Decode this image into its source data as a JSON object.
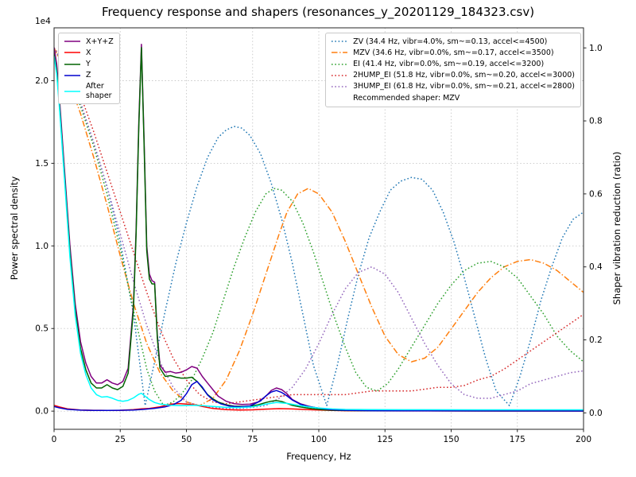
{
  "chart_data": {
    "type": "line",
    "title": "Frequency response and shapers (resonances_y_20201129_184323.csv)",
    "xlabel": "Frequency, Hz",
    "ylabel_left": "Power spectral density",
    "ylabel_right": "Shaper vibration reduction (ratio)",
    "xlim": [
      0,
      200
    ],
    "x_ticks": [
      0,
      25,
      50,
      75,
      100,
      125,
      150,
      175,
      200
    ],
    "left_axis": {
      "offset_text": "1e4",
      "ticks": [
        0,
        5000,
        10000,
        15000,
        20000
      ],
      "tick_labels": [
        "0.0",
        "0.5",
        "1.0",
        "1.5",
        "2.0"
      ],
      "lim": [
        -1100,
        23200
      ]
    },
    "right_axis": {
      "ticks": [
        0,
        0.2,
        0.4,
        0.6,
        0.8,
        1.0
      ],
      "tick_labels": [
        "0.0",
        "0.2",
        "0.4",
        "0.6",
        "0.8",
        "1.0"
      ],
      "lim": [
        -0.045,
        1.055
      ]
    },
    "grid": true,
    "legend_note": "Recommended shaper: MZV",
    "psd_series": [
      {
        "name": "X+Y+Z",
        "color": "#800080",
        "style": "solid",
        "x": [
          0,
          1,
          2,
          4,
          6,
          8,
          10,
          12,
          14,
          16,
          18,
          20,
          22,
          24,
          26,
          28,
          30,
          31,
          32,
          33,
          34,
          35,
          36,
          37,
          38,
          39,
          40,
          42,
          44,
          46,
          48,
          50,
          52,
          54,
          56,
          58,
          60,
          62,
          65,
          68,
          71,
          74,
          77,
          80,
          82,
          84,
          86,
          88,
          90,
          93,
          96,
          99,
          102,
          106,
          110,
          115,
          120,
          130,
          140,
          160,
          180,
          200
        ],
        "y": [
          22000,
          21000,
          19000,
          14500,
          10000,
          6500,
          4200,
          2900,
          2100,
          1700,
          1700,
          1900,
          1700,
          1600,
          1800,
          2600,
          6500,
          11000,
          17500,
          22200,
          16500,
          10000,
          8300,
          7900,
          7800,
          4600,
          2800,
          2350,
          2400,
          2300,
          2350,
          2500,
          2700,
          2600,
          2100,
          1700,
          1300,
          900,
          600,
          450,
          400,
          420,
          550,
          900,
          1250,
          1400,
          1300,
          1050,
          700,
          450,
          300,
          200,
          130,
          80,
          60,
          45,
          40,
          30,
          25,
          20,
          20,
          20
        ]
      },
      {
        "name": "X",
        "color": "#ff0000",
        "style": "solid",
        "x": [
          0,
          2,
          5,
          10,
          15,
          20,
          25,
          30,
          33,
          36,
          40,
          44,
          47,
          50,
          53,
          56,
          60,
          65,
          70,
          75,
          80,
          85,
          90,
          95,
          100,
          105,
          110,
          120,
          140,
          170,
          200
        ],
        "y": [
          350,
          250,
          140,
          70,
          50,
          45,
          50,
          90,
          140,
          160,
          260,
          420,
          460,
          430,
          380,
          280,
          160,
          90,
          70,
          80,
          120,
          150,
          130,
          100,
          70,
          40,
          25,
          15,
          10,
          8,
          8
        ]
      },
      {
        "name": "Y",
        "color": "#006400",
        "style": "solid",
        "x": [
          0,
          1,
          2,
          4,
          6,
          8,
          10,
          12,
          14,
          16,
          18,
          20,
          22,
          24,
          26,
          28,
          30,
          31,
          32,
          33,
          34,
          35,
          36,
          37,
          38,
          39,
          40,
          42,
          44,
          46,
          48,
          50,
          52,
          54,
          56,
          58,
          60,
          62,
          65,
          68,
          71,
          74,
          77,
          80,
          82,
          84,
          86,
          88,
          90,
          93,
          96,
          99,
          102,
          106,
          110,
          115,
          120,
          130,
          140,
          160,
          180,
          200
        ],
        "y": [
          21600,
          20600,
          18600,
          14100,
          9600,
          6100,
          3800,
          2500,
          1700,
          1400,
          1400,
          1600,
          1400,
          1300,
          1500,
          2300,
          6200,
          10700,
          17200,
          22000,
          16200,
          9700,
          8000,
          7700,
          7700,
          4400,
          2600,
          2100,
          2150,
          2050,
          2000,
          2000,
          2050,
          1800,
          1400,
          1000,
          750,
          550,
          380,
          300,
          280,
          300,
          380,
          520,
          600,
          640,
          580,
          470,
          350,
          250,
          180,
          120,
          80,
          50,
          35,
          30,
          25,
          20,
          15,
          12,
          10,
          10
        ]
      },
      {
        "name": "Z",
        "color": "#0000cd",
        "style": "solid",
        "x": [
          0,
          2,
          5,
          10,
          15,
          20,
          25,
          30,
          34,
          38,
          42,
          45,
          48,
          50,
          52,
          54,
          56,
          58,
          60,
          63,
          66,
          70,
          74,
          78,
          80,
          82,
          84,
          86,
          88,
          90,
          93,
          96,
          100,
          104,
          108,
          112,
          120,
          140,
          170,
          200
        ],
        "y": [
          280,
          200,
          110,
          60,
          45,
          40,
          50,
          70,
          110,
          170,
          260,
          380,
          650,
          1050,
          1600,
          1800,
          1450,
          980,
          680,
          440,
          310,
          260,
          310,
          620,
          920,
          1150,
          1250,
          1130,
          920,
          670,
          420,
          280,
          180,
          100,
          60,
          40,
          25,
          15,
          10,
          8
        ]
      },
      {
        "name": "After shaper",
        "label_display": "After\nshaper",
        "color": "#00ffff",
        "style": "solid",
        "x": [
          0,
          1,
          2,
          4,
          6,
          8,
          10,
          12,
          14,
          16,
          18,
          20,
          22,
          24,
          26,
          28,
          30,
          32,
          33,
          34,
          36,
          38,
          40,
          44,
          48,
          52,
          56,
          60,
          65,
          70,
          75,
          80,
          84,
          88,
          92,
          96,
          100,
          105,
          110,
          120,
          140,
          160,
          180,
          200
        ],
        "y": [
          21500,
          20400,
          18400,
          13900,
          9300,
          5800,
          3500,
          2200,
          1400,
          1000,
          850,
          880,
          780,
          650,
          600,
          650,
          800,
          1020,
          1080,
          950,
          700,
          520,
          430,
          360,
          330,
          360,
          330,
          280,
          230,
          220,
          260,
          420,
          520,
          470,
          360,
          260,
          190,
          130,
          105,
          95,
          85,
          80,
          80,
          80
        ]
      }
    ],
    "shaper_series": [
      {
        "name": "ZV",
        "label": "ZV (34.4 Hz, vibr=4.0%, sm~=0.13, accel<=4500)",
        "color": "#1f77b4",
        "style": "dotted",
        "x": [
          0,
          5,
          10,
          15,
          20,
          25,
          30,
          34.4,
          38,
          42,
          46,
          50,
          54,
          58,
          62,
          65,
          68,
          71,
          74,
          78,
          82,
          86,
          90,
          94,
          98,
          103,
          107,
          111,
          115,
          119,
          123,
          127,
          131,
          135,
          139,
          143,
          147,
          151,
          155,
          159,
          163,
          167,
          172,
          176,
          180,
          184,
          188,
          192,
          196,
          200
        ],
        "y": [
          1.0,
          0.94,
          0.85,
          0.74,
          0.62,
          0.47,
          0.27,
          0.02,
          0.14,
          0.28,
          0.41,
          0.52,
          0.62,
          0.7,
          0.755,
          0.775,
          0.785,
          0.78,
          0.76,
          0.71,
          0.63,
          0.53,
          0.41,
          0.27,
          0.13,
          0.02,
          0.13,
          0.26,
          0.38,
          0.48,
          0.55,
          0.61,
          0.635,
          0.645,
          0.64,
          0.61,
          0.55,
          0.47,
          0.37,
          0.26,
          0.15,
          0.06,
          0.02,
          0.1,
          0.2,
          0.31,
          0.4,
          0.48,
          0.53,
          0.55
        ]
      },
      {
        "name": "MZV",
        "label": "MZV (34.6 Hz, vibr=0.0%, sm~=0.17, accel<=3500)",
        "color": "#ff7f0e",
        "style": "dashdot",
        "x": [
          0,
          5,
          10,
          15,
          20,
          25,
          30,
          35,
          40,
          45,
          50,
          55,
          60,
          65,
          70,
          75,
          80,
          85,
          88,
          92,
          96,
          100,
          105,
          110,
          115,
          120,
          125,
          130,
          135,
          140,
          145,
          150,
          155,
          160,
          165,
          170,
          175,
          180,
          185,
          190,
          195,
          200
        ],
        "y": [
          1.0,
          0.92,
          0.82,
          0.7,
          0.57,
          0.43,
          0.3,
          0.19,
          0.11,
          0.06,
          0.03,
          0.02,
          0.04,
          0.09,
          0.17,
          0.27,
          0.38,
          0.49,
          0.55,
          0.6,
          0.615,
          0.6,
          0.55,
          0.47,
          0.38,
          0.29,
          0.21,
          0.16,
          0.14,
          0.15,
          0.18,
          0.23,
          0.28,
          0.33,
          0.37,
          0.4,
          0.415,
          0.42,
          0.41,
          0.39,
          0.36,
          0.33
        ]
      },
      {
        "name": "EI",
        "label": "EI (41.4 Hz, vibr=0.0%, sm~=0.19, accel<=3200)",
        "color": "#2ca02c",
        "style": "dotted",
        "x": [
          0,
          5,
          10,
          15,
          20,
          25,
          30,
          35,
          38,
          41.4,
          45,
          48,
          52,
          56,
          60,
          64,
          68,
          72,
          76,
          80,
          83,
          86,
          90,
          94,
          98,
          102,
          106,
          110,
          114,
          118,
          122,
          126,
          130,
          135,
          140,
          145,
          150,
          155,
          160,
          165,
          170,
          175,
          180,
          185,
          190,
          195,
          200
        ],
        "y": [
          1.0,
          0.93,
          0.84,
          0.73,
          0.6,
          0.45,
          0.28,
          0.12,
          0.06,
          0.02,
          0.03,
          0.05,
          0.09,
          0.15,
          0.22,
          0.31,
          0.4,
          0.48,
          0.55,
          0.6,
          0.615,
          0.61,
          0.58,
          0.52,
          0.44,
          0.35,
          0.26,
          0.18,
          0.11,
          0.07,
          0.06,
          0.08,
          0.12,
          0.18,
          0.24,
          0.3,
          0.35,
          0.39,
          0.41,
          0.415,
          0.4,
          0.37,
          0.32,
          0.27,
          0.21,
          0.17,
          0.14
        ]
      },
      {
        "name": "2HUMP_EI",
        "label": "2HUMP_EI (51.8 Hz, vibr=0.0%, sm~=0.20, accel<=3000)",
        "color": "#d62728",
        "style": "dotted",
        "x": [
          0,
          5,
          10,
          15,
          20,
          25,
          30,
          35,
          40,
          45,
          50,
          55,
          60,
          65,
          70,
          75,
          80,
          85,
          90,
          95,
          100,
          105,
          110,
          115,
          120,
          125,
          130,
          135,
          140,
          145,
          150,
          155,
          160,
          165,
          170,
          175,
          180,
          185,
          190,
          195,
          200
        ],
        "y": [
          1.0,
          0.95,
          0.87,
          0.77,
          0.66,
          0.55,
          0.44,
          0.33,
          0.23,
          0.15,
          0.09,
          0.05,
          0.03,
          0.025,
          0.03,
          0.035,
          0.04,
          0.045,
          0.05,
          0.05,
          0.05,
          0.05,
          0.05,
          0.055,
          0.06,
          0.06,
          0.06,
          0.06,
          0.065,
          0.07,
          0.07,
          0.075,
          0.09,
          0.1,
          0.12,
          0.145,
          0.17,
          0.195,
          0.22,
          0.245,
          0.27
        ]
      },
      {
        "name": "3HUMP_EI",
        "label": "3HUMP_EI (61.8 Hz, vibr=0.0%, sm~=0.21, accel<=2800)",
        "color": "#9467bd",
        "style": "dotted",
        "x": [
          0,
          5,
          10,
          15,
          20,
          25,
          30,
          35,
          40,
          45,
          50,
          55,
          60,
          65,
          70,
          75,
          80,
          85,
          90,
          95,
          100,
          105,
          110,
          115,
          120,
          125,
          130,
          135,
          140,
          145,
          150,
          155,
          160,
          165,
          170,
          175,
          180,
          185,
          190,
          195,
          200
        ],
        "y": [
          1.0,
          0.93,
          0.85,
          0.74,
          0.62,
          0.49,
          0.36,
          0.24,
          0.14,
          0.07,
          0.03,
          0.02,
          0.015,
          0.012,
          0.012,
          0.015,
          0.02,
          0.04,
          0.07,
          0.12,
          0.19,
          0.27,
          0.34,
          0.385,
          0.4,
          0.38,
          0.33,
          0.26,
          0.19,
          0.13,
          0.08,
          0.05,
          0.04,
          0.04,
          0.05,
          0.06,
          0.08,
          0.09,
          0.1,
          0.11,
          0.115
        ]
      }
    ]
  }
}
